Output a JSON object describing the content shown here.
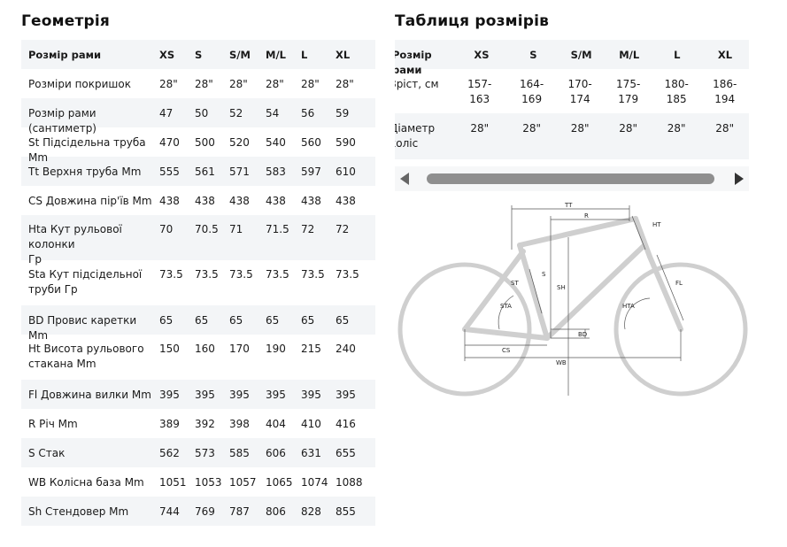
{
  "geometry": {
    "title": "Геометрія",
    "header": [
      "Розмір рами",
      "XS",
      "S",
      "S/M",
      "M/L",
      "L",
      "XL"
    ],
    "rows": [
      {
        "label": [
          "Розміри покришок"
        ],
        "values": [
          "28\"",
          "28\"",
          "28\"",
          "28\"",
          "28\"",
          "28\""
        ]
      },
      {
        "label": [
          "Розмір рами (сантиметр)"
        ],
        "values": [
          "47",
          "50",
          "52",
          "54",
          "56",
          "59"
        ]
      },
      {
        "label": [
          "St Підсідельна труба Mm"
        ],
        "values": [
          "470",
          "500",
          "520",
          "540",
          "560",
          "590"
        ]
      },
      {
        "label": [
          "Tt Верхня труба Mm"
        ],
        "values": [
          "555",
          "561",
          "571",
          "583",
          "597",
          "610"
        ]
      },
      {
        "label": [
          "CS Довжина пір'їв Mm"
        ],
        "values": [
          "438",
          "438",
          "438",
          "438",
          "438",
          "438"
        ]
      },
      {
        "label": [
          "Hta Кут рульової колонки",
          "Гр"
        ],
        "values": [
          "70",
          "70.5",
          "71",
          "71.5",
          "72",
          "72"
        ]
      },
      {
        "label": [
          "Sta Кут підсідельної",
          "труби Гр"
        ],
        "values": [
          "73.5",
          "73.5",
          "73.5",
          "73.5",
          "73.5",
          "73.5"
        ]
      },
      {
        "label": [
          "BD Провис каретки Mm"
        ],
        "values": [
          "65",
          "65",
          "65",
          "65",
          "65",
          "65"
        ]
      },
      {
        "label": [
          "Ht Висота рульового",
          "стакана Mm"
        ],
        "values": [
          "150",
          "160",
          "170",
          "190",
          "215",
          "240"
        ]
      },
      {
        "label": [
          "Fl Довжина вилки Mm"
        ],
        "values": [
          "395",
          "395",
          "395",
          "395",
          "395",
          "395"
        ]
      },
      {
        "label": [
          "R Річ Mm"
        ],
        "values": [
          "389",
          "392",
          "398",
          "404",
          "410",
          "416"
        ]
      },
      {
        "label": [
          "S Стак"
        ],
        "values": [
          "562",
          "573",
          "585",
          "606",
          "631",
          "655"
        ]
      },
      {
        "label": [
          "WB Колісна база Mm"
        ],
        "values": [
          "1051",
          "1053",
          "1057",
          "1065",
          "1074",
          "1088"
        ]
      },
      {
        "label": [
          "Sh Стендовер Mm"
        ],
        "values": [
          "744",
          "769",
          "787",
          "806",
          "828",
          "855"
        ]
      }
    ]
  },
  "size_table": {
    "title": "Таблиця розмірів",
    "header": [
      "Розмір рами",
      "XS",
      "S",
      "S/M",
      "M/L",
      "L",
      "XL"
    ],
    "rows": [
      {
        "label": [
          "Зріст, см"
        ],
        "values": [
          [
            "157-",
            "163"
          ],
          [
            "164-",
            "169"
          ],
          [
            "170-",
            "174"
          ],
          [
            "175-",
            "179"
          ],
          [
            "180-",
            "185"
          ],
          [
            "186-",
            "194"
          ]
        ]
      },
      {
        "label": [
          "Діаметр",
          "коліс"
        ],
        "values": [
          [
            "28\""
          ],
          [
            "28\""
          ],
          [
            "28\""
          ],
          [
            "28\""
          ],
          [
            "28\""
          ],
          [
            "28\""
          ]
        ]
      }
    ]
  },
  "diagram": {
    "labels": {
      "tt": "TT",
      "r": "R",
      "ht": "HT",
      "s": "S",
      "sh": "SH",
      "st": "ST",
      "sta": "STA",
      "fl": "FL",
      "hta": "HTA",
      "bd": "BD",
      "cs": "CS",
      "wb": "WB"
    }
  },
  "colors": {
    "stripe": "#f3f5f7",
    "frame": "#cfcfcf",
    "scroll_thumb": "#8f8f8f"
  }
}
